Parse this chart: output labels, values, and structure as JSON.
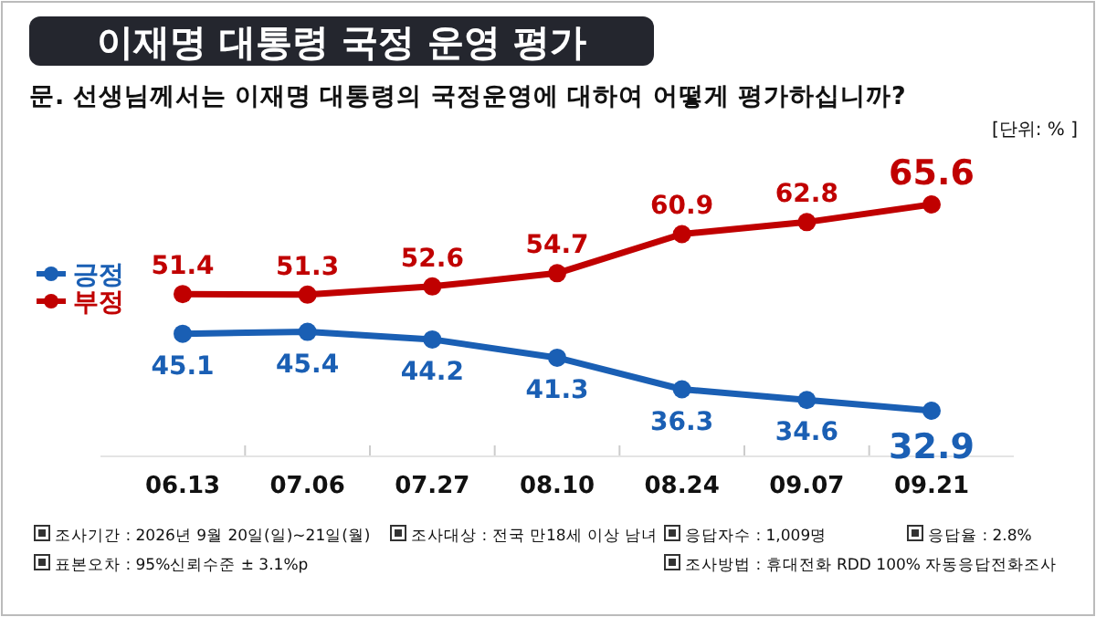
{
  "chart_data": {
    "type": "line",
    "title": "이재명 대통령 국정 운영 평가",
    "subtitle": "문. 선생님께서는 이재명 대통령의 국정운영에 대하여 어떻게 평가하십니까?",
    "categories": [
      "06.13",
      "07.06",
      "07.27",
      "08.10",
      "08.24",
      "09.07",
      "09.21"
    ],
    "series": [
      {
        "name": "긍정",
        "color": "#1a5fb4",
        "values": [
          45.1,
          45.4,
          44.2,
          41.3,
          36.3,
          34.6,
          32.9
        ]
      },
      {
        "name": "부정",
        "color": "#c00000",
        "values": [
          51.4,
          51.3,
          52.6,
          54.7,
          60.9,
          62.8,
          65.6
        ]
      }
    ],
    "data_labels": true,
    "legend": "left",
    "marker": "circle",
    "line_style": "solid",
    "annotations": [
      "[단위: % ]",
      "조사기간 : 2026년 9월 20일(일)~21일(월)",
      "조사대상 : 전국 만18세 이상 남녀",
      "응답자수 : 1,009명",
      "응답율 : 2.8%",
      "표본오차 : 95%신뢰수준 ± 3.1%p",
      "조사방법 : 휴대전화 RDD 100% 자동응답전화조사"
    ]
  }
}
